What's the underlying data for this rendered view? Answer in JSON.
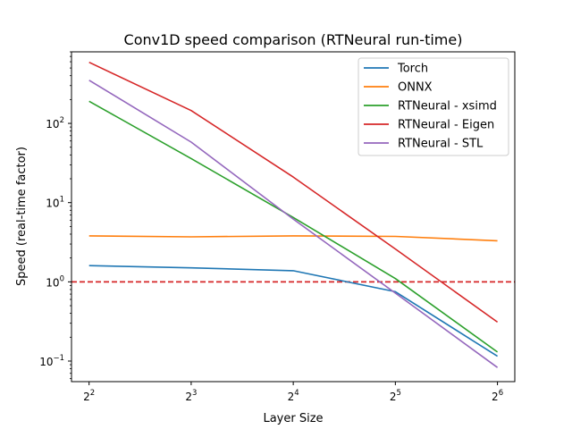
{
  "chart_data": {
    "type": "line",
    "title": "Conv1D speed comparison (RTNeural run-time)",
    "xlabel": "Layer Size",
    "ylabel": "Speed (real-time factor)",
    "x_scale": "log2",
    "y_scale": "log10",
    "x": [
      4,
      8,
      16,
      32,
      64
    ],
    "x_tick_labels": [
      {
        "base": "2",
        "exp": "2"
      },
      {
        "base": "2",
        "exp": "3"
      },
      {
        "base": "2",
        "exp": "4"
      },
      {
        "base": "2",
        "exp": "5"
      },
      {
        "base": "2",
        "exp": "6"
      }
    ],
    "y_ticks": [
      0.1,
      1,
      10,
      100
    ],
    "y_tick_labels": [
      {
        "base": "10",
        "exp": "−1"
      },
      {
        "base": "10",
        "exp": "0"
      },
      {
        "base": "10",
        "exp": "1"
      },
      {
        "base": "10",
        "exp": "2"
      }
    ],
    "ylim": [
      0.055,
      800
    ],
    "grid": false,
    "legend_position": "top-right",
    "reference_line": {
      "y": 1.0,
      "color": "#d62728",
      "style": "dashed"
    },
    "series": [
      {
        "name": "Torch",
        "color": "#1f77b4",
        "values": [
          1.6,
          1.5,
          1.38,
          0.75,
          0.115
        ]
      },
      {
        "name": "ONNX",
        "color": "#ff7f0e",
        "values": [
          3.8,
          3.7,
          3.8,
          3.75,
          3.3
        ]
      },
      {
        "name": "RTNeural - xsimd",
        "color": "#2ca02c",
        "values": [
          190,
          36,
          6.5,
          1.1,
          0.13
        ]
      },
      {
        "name": "RTNeural - Eigen",
        "color": "#d62728",
        "values": [
          590,
          145,
          21,
          2.6,
          0.31
        ]
      },
      {
        "name": "RTNeural - STL",
        "color": "#9467bd",
        "values": [
          350,
          58,
          6.2,
          0.72,
          0.083
        ]
      }
    ]
  }
}
